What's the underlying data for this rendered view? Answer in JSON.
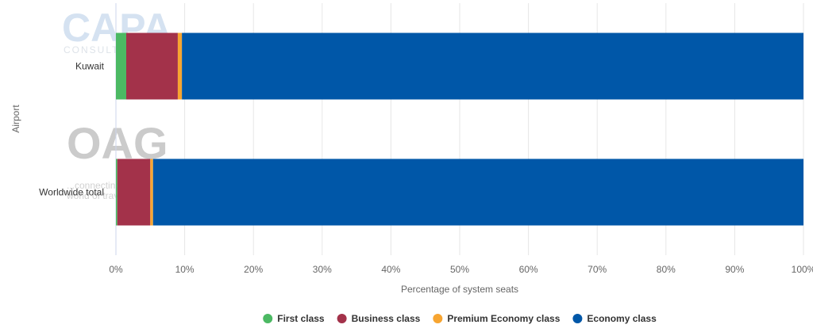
{
  "chart_data": {
    "type": "bar",
    "orientation": "horizontal",
    "stacked": true,
    "categories": [
      "Kuwait",
      "Worldwide total"
    ],
    "series": [
      {
        "name": "First class",
        "color": "#4cb963",
        "values": [
          1.5,
          0.2
        ]
      },
      {
        "name": "Business class",
        "color": "#a3324a",
        "values": [
          7.5,
          4.8
        ]
      },
      {
        "name": "Premium Economy class",
        "color": "#f7a531",
        "values": [
          0.6,
          0.4
        ]
      },
      {
        "name": "Economy class",
        "color": "#0057a8",
        "values": [
          90.4,
          94.6
        ]
      }
    ],
    "xlabel": "Percentage of system seats",
    "ylabel": "Airport",
    "xlim": [
      0,
      100
    ],
    "xticks": [
      "0%",
      "10%",
      "20%",
      "30%",
      "40%",
      "50%",
      "60%",
      "70%",
      "80%",
      "90%",
      "100%"
    ],
    "grid": true,
    "legend_position": "bottom"
  },
  "watermarks": {
    "capa": "CAPA",
    "capa_sub": "CONSULTING",
    "oag": "OAG",
    "oag_tagline_1": "...connecting the",
    "oag_tagline_2": "world of travel"
  }
}
